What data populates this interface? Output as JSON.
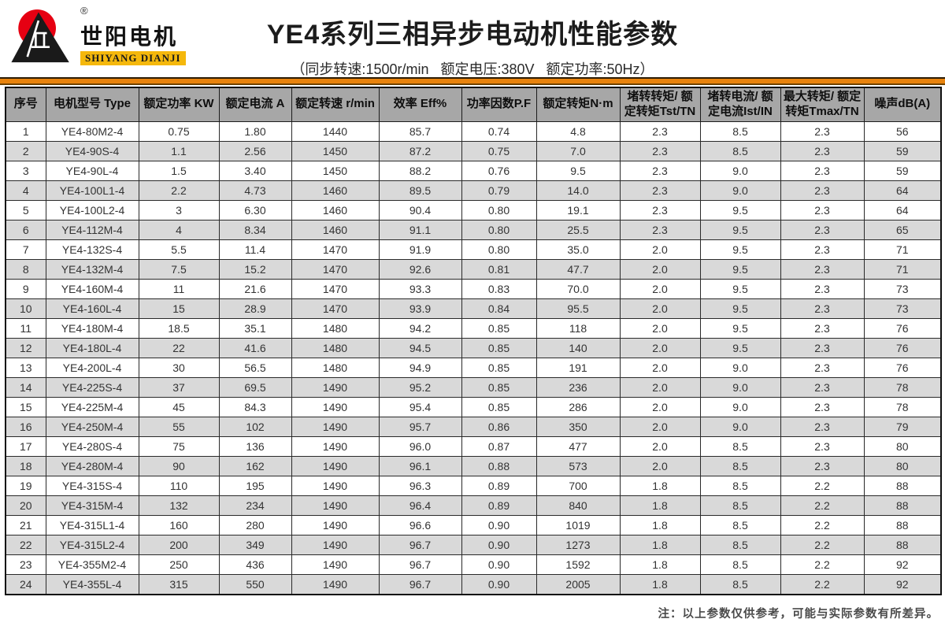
{
  "colors": {
    "accent_orange": "#e8830d",
    "header_gray": "#a7a7a7",
    "row_alt_gray": "#d9d9d9",
    "brand_red": "#e60012",
    "brand_gold": "#f5b80c"
  },
  "brand": {
    "name_cn": "世阳电机",
    "name_en": "SHIYANG DIANJI",
    "registered_mark": "®"
  },
  "header": {
    "title": "YE4系列三相异步电动机性能参数",
    "subtitle": "（同步转速:1500r/min   额定电压:380V   额定功率:50Hz）"
  },
  "table": {
    "columns": [
      "序号",
      "电机型号 Type",
      "额定功率 KW",
      "额定电流 A",
      "额定转速 r/min",
      "效率 Eff%",
      "功率因数P.F",
      "额定转矩N·m",
      "堵转转矩/ 额定转矩Tst/TN",
      "堵转电流/ 额定电流Ist/IN",
      "最大转矩/ 额定转矩Tmax/TN",
      "噪声dB(A)"
    ],
    "rows": [
      [
        "1",
        "YE4-80M2-4",
        "0.75",
        "1.80",
        "1440",
        "85.7",
        "0.74",
        "4.8",
        "2.3",
        "8.5",
        "2.3",
        "56"
      ],
      [
        "2",
        "YE4-90S-4",
        "1.1",
        "2.56",
        "1450",
        "87.2",
        "0.75",
        "7.0",
        "2.3",
        "8.5",
        "2.3",
        "59"
      ],
      [
        "3",
        "YE4-90L-4",
        "1.5",
        "3.40",
        "1450",
        "88.2",
        "0.76",
        "9.5",
        "2.3",
        "9.0",
        "2.3",
        "59"
      ],
      [
        "4",
        "YE4-100L1-4",
        "2.2",
        "4.73",
        "1460",
        "89.5",
        "0.79",
        "14.0",
        "2.3",
        "9.0",
        "2.3",
        "64"
      ],
      [
        "5",
        "YE4-100L2-4",
        "3",
        "6.30",
        "1460",
        "90.4",
        "0.80",
        "19.1",
        "2.3",
        "9.5",
        "2.3",
        "64"
      ],
      [
        "6",
        "YE4-112M-4",
        "4",
        "8.34",
        "1460",
        "91.1",
        "0.80",
        "25.5",
        "2.3",
        "9.5",
        "2.3",
        "65"
      ],
      [
        "7",
        "YE4-132S-4",
        "5.5",
        "11.4",
        "1470",
        "91.9",
        "0.80",
        "35.0",
        "2.0",
        "9.5",
        "2.3",
        "71"
      ],
      [
        "8",
        "YE4-132M-4",
        "7.5",
        "15.2",
        "1470",
        "92.6",
        "0.81",
        "47.7",
        "2.0",
        "9.5",
        "2.3",
        "71"
      ],
      [
        "9",
        "YE4-160M-4",
        "11",
        "21.6",
        "1470",
        "93.3",
        "0.83",
        "70.0",
        "2.0",
        "9.5",
        "2.3",
        "73"
      ],
      [
        "10",
        "YE4-160L-4",
        "15",
        "28.9",
        "1470",
        "93.9",
        "0.84",
        "95.5",
        "2.0",
        "9.5",
        "2.3",
        "73"
      ],
      [
        "11",
        "YE4-180M-4",
        "18.5",
        "35.1",
        "1480",
        "94.2",
        "0.85",
        "118",
        "2.0",
        "9.5",
        "2.3",
        "76"
      ],
      [
        "12",
        "YE4-180L-4",
        "22",
        "41.6",
        "1480",
        "94.5",
        "0.85",
        "140",
        "2.0",
        "9.5",
        "2.3",
        "76"
      ],
      [
        "13",
        "YE4-200L-4",
        "30",
        "56.5",
        "1480",
        "94.9",
        "0.85",
        "191",
        "2.0",
        "9.0",
        "2.3",
        "76"
      ],
      [
        "14",
        "YE4-225S-4",
        "37",
        "69.5",
        "1490",
        "95.2",
        "0.85",
        "236",
        "2.0",
        "9.0",
        "2.3",
        "78"
      ],
      [
        "15",
        "YE4-225M-4",
        "45",
        "84.3",
        "1490",
        "95.4",
        "0.85",
        "286",
        "2.0",
        "9.0",
        "2.3",
        "78"
      ],
      [
        "16",
        "YE4-250M-4",
        "55",
        "102",
        "1490",
        "95.7",
        "0.86",
        "350",
        "2.0",
        "9.0",
        "2.3",
        "79"
      ],
      [
        "17",
        "YE4-280S-4",
        "75",
        "136",
        "1490",
        "96.0",
        "0.87",
        "477",
        "2.0",
        "8.5",
        "2.3",
        "80"
      ],
      [
        "18",
        "YE4-280M-4",
        "90",
        "162",
        "1490",
        "96.1",
        "0.88",
        "573",
        "2.0",
        "8.5",
        "2.3",
        "80"
      ],
      [
        "19",
        "YE4-315S-4",
        "110",
        "195",
        "1490",
        "96.3",
        "0.89",
        "700",
        "1.8",
        "8.5",
        "2.2",
        "88"
      ],
      [
        "20",
        "YE4-315M-4",
        "132",
        "234",
        "1490",
        "96.4",
        "0.89",
        "840",
        "1.8",
        "8.5",
        "2.2",
        "88"
      ],
      [
        "21",
        "YE4-315L1-4",
        "160",
        "280",
        "1490",
        "96.6",
        "0.90",
        "1019",
        "1.8",
        "8.5",
        "2.2",
        "88"
      ],
      [
        "22",
        "YE4-315L2-4",
        "200",
        "349",
        "1490",
        "96.7",
        "0.90",
        "1273",
        "1.8",
        "8.5",
        "2.2",
        "88"
      ],
      [
        "23",
        "YE4-355M2-4",
        "250",
        "436",
        "1490",
        "96.7",
        "0.90",
        "1592",
        "1.8",
        "8.5",
        "2.2",
        "92"
      ],
      [
        "24",
        "YE4-355L-4",
        "315",
        "550",
        "1490",
        "96.7",
        "0.90",
        "2005",
        "1.8",
        "8.5",
        "2.2",
        "92"
      ]
    ]
  },
  "footer": {
    "note": "注：以上参数仅供参考，可能与实际参数有所差异。"
  }
}
